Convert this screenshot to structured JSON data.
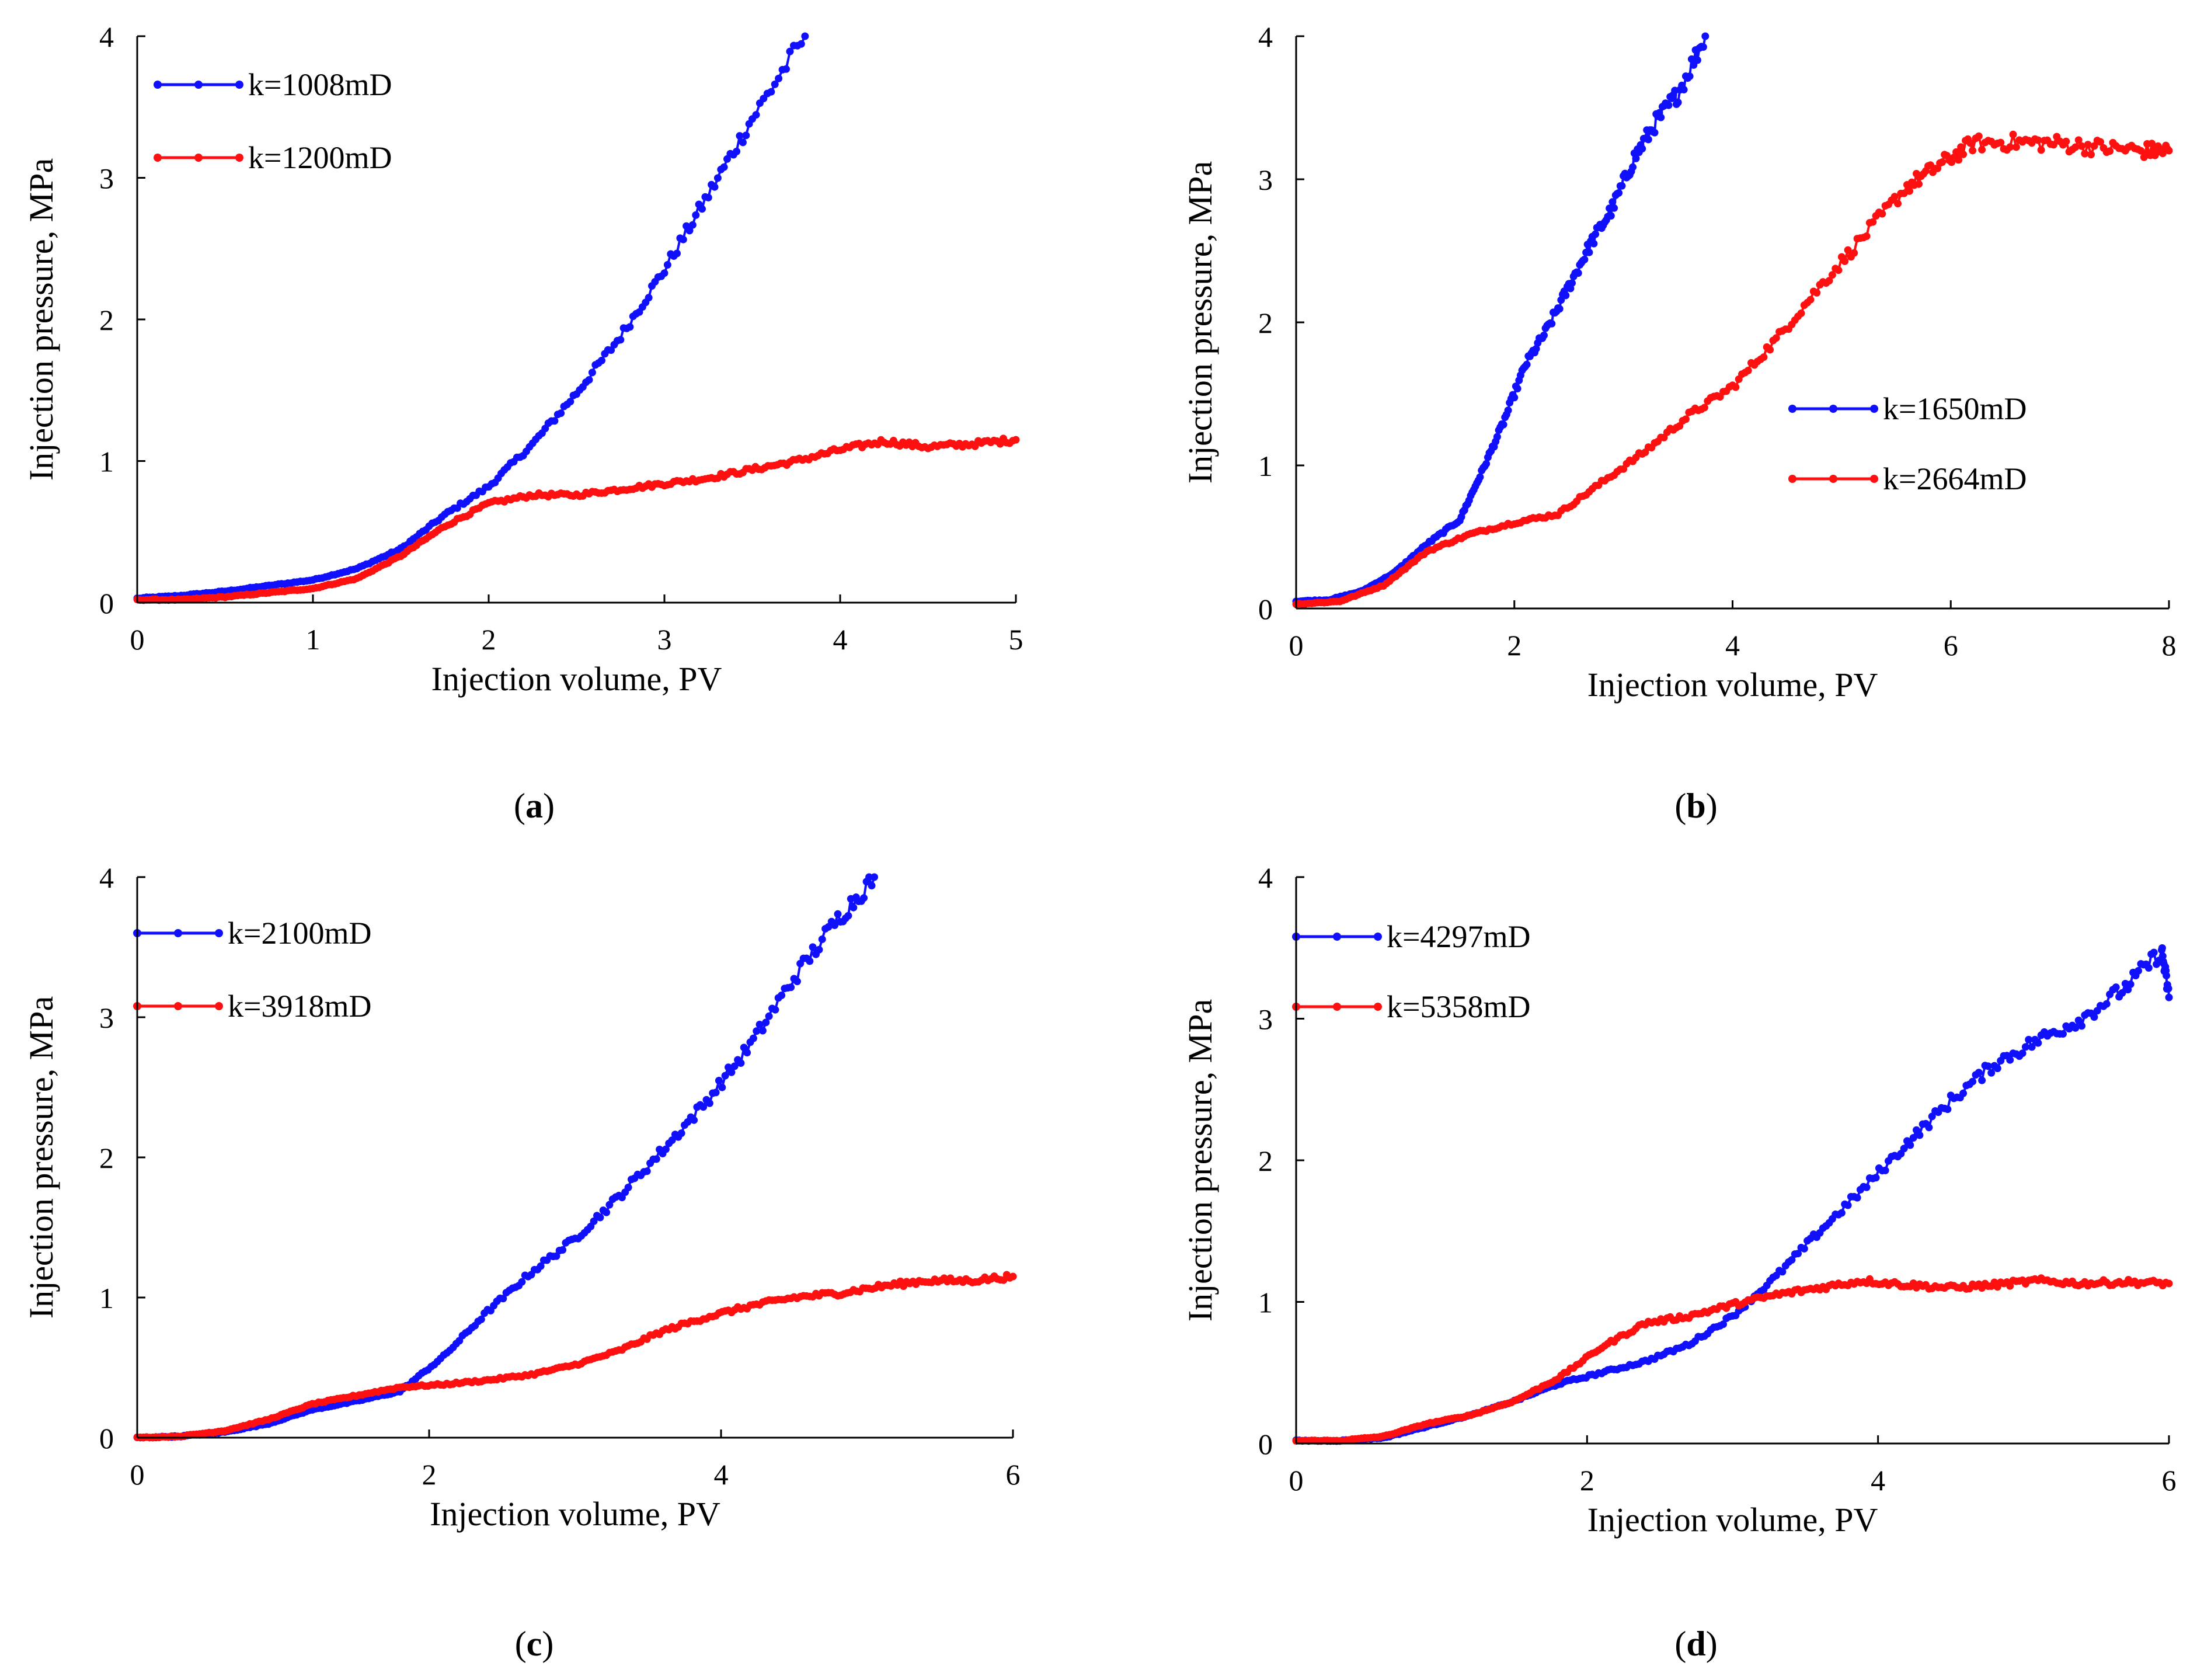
{
  "chart_data": [
    {
      "type": "line",
      "panel": "(a)",
      "caption_letter": "a",
      "xlabel": "Injection volume, PV",
      "ylabel": "Injection pressure, MPa",
      "xlim": [
        0,
        5
      ],
      "ylim": [
        0,
        4
      ],
      "xticks": [
        0,
        1,
        2,
        3,
        4,
        5
      ],
      "yticks": [
        0,
        1,
        2,
        3,
        4
      ],
      "grid": false,
      "legend_position": "top-left",
      "series": [
        {
          "name": "k=1008mD",
          "color": "#1010ff",
          "x": [
            0,
            0.25,
            0.5,
            0.75,
            1.0,
            1.25,
            1.5,
            1.75,
            2.0,
            2.25,
            2.5,
            2.75,
            3.0,
            3.25,
            3.5,
            3.8
          ],
          "y": [
            0.03,
            0.05,
            0.08,
            0.12,
            0.16,
            0.24,
            0.38,
            0.62,
            0.82,
            1.12,
            1.48,
            1.88,
            2.35,
            2.88,
            3.42,
            4.0
          ]
        },
        {
          "name": "k=1200mD",
          "color": "#ff1010",
          "x": [
            0,
            0.25,
            0.5,
            0.75,
            1.0,
            1.25,
            1.5,
            1.75,
            2.0,
            2.25,
            2.5,
            2.75,
            3.0,
            3.25,
            3.5,
            3.75,
            4.0,
            4.25,
            4.5,
            4.75,
            5.0
          ],
          "y": [
            0.02,
            0.02,
            0.04,
            0.07,
            0.1,
            0.17,
            0.33,
            0.54,
            0.7,
            0.76,
            0.76,
            0.8,
            0.84,
            0.88,
            0.94,
            1.0,
            1.08,
            1.14,
            1.1,
            1.12,
            1.15
          ]
        }
      ]
    },
    {
      "type": "line",
      "panel": "(b)",
      "caption_letter": "b",
      "xlabel": "Injection volume, PV",
      "ylabel": "Injection pressure, MPa",
      "xlim": [
        0,
        8
      ],
      "ylim": [
        0,
        4
      ],
      "xticks": [
        0,
        2,
        4,
        6,
        8
      ],
      "yticks": [
        0,
        1,
        2,
        3,
        4
      ],
      "grid": false,
      "legend_position": "middle-right",
      "series": [
        {
          "name": "k=1650mD",
          "color": "#1010ff",
          "x": [
            0,
            0.3,
            0.6,
            0.9,
            1.2,
            1.5,
            1.7,
            1.9,
            2.1,
            2.3,
            2.5,
            2.7,
            2.9,
            3.1,
            3.3,
            3.5,
            3.75
          ],
          "y": [
            0.05,
            0.06,
            0.12,
            0.25,
            0.45,
            0.62,
            0.95,
            1.3,
            1.7,
            1.95,
            2.25,
            2.55,
            2.8,
            3.15,
            3.4,
            3.6,
            4.0
          ]
        },
        {
          "name": "k=2664mD",
          "color": "#ff1010",
          "x": [
            0,
            0.4,
            0.8,
            1.2,
            1.6,
            2.0,
            2.4,
            2.8,
            3.2,
            3.6,
            4.0,
            4.4,
            4.8,
            5.2,
            5.6,
            5.9,
            6.2,
            6.6,
            7.0,
            7.4,
            7.8,
            8.0
          ],
          "y": [
            0.03,
            0.05,
            0.16,
            0.4,
            0.52,
            0.6,
            0.66,
            0.88,
            1.1,
            1.35,
            1.55,
            1.88,
            2.25,
            2.6,
            2.95,
            3.1,
            3.25,
            3.26,
            3.25,
            3.22,
            3.2,
            3.2
          ]
        }
      ]
    },
    {
      "type": "line",
      "panel": "(c)",
      "caption_letter": "c",
      "xlabel": "Injection volume, PV",
      "ylabel": "Injection pressure, MPa",
      "xlim": [
        0,
        6
      ],
      "ylim": [
        0,
        4
      ],
      "xticks": [
        0,
        2,
        4,
        6
      ],
      "yticks": [
        0,
        1,
        2,
        3,
        4
      ],
      "grid": false,
      "legend_position": "top-left",
      "series": [
        {
          "name": "k=2100mD",
          "color": "#1010ff",
          "x": [
            0,
            0.3,
            0.6,
            0.9,
            1.2,
            1.5,
            1.8,
            2.1,
            2.4,
            2.7,
            3.0,
            3.3,
            3.6,
            3.9,
            4.2,
            4.5,
            4.8,
            5.05
          ],
          "y": [
            0,
            0.01,
            0.04,
            0.1,
            0.2,
            0.26,
            0.33,
            0.58,
            0.9,
            1.18,
            1.42,
            1.72,
            2.05,
            2.4,
            2.8,
            3.28,
            3.7,
            4.0
          ]
        },
        {
          "name": "k=3918mD",
          "color": "#ff1010",
          "x": [
            0,
            0.3,
            0.6,
            0.9,
            1.2,
            1.5,
            1.8,
            2.1,
            2.4,
            2.7,
            3.0,
            3.3,
            3.6,
            3.9,
            4.2,
            4.5,
            4.8,
            5.1,
            5.4,
            5.7,
            6.0
          ],
          "y": [
            0,
            0.01,
            0.05,
            0.13,
            0.24,
            0.3,
            0.36,
            0.38,
            0.41,
            0.45,
            0.52,
            0.62,
            0.76,
            0.86,
            0.94,
            1.0,
            1.03,
            1.08,
            1.12,
            1.12,
            1.15
          ]
        }
      ]
    },
    {
      "type": "line",
      "panel": "(d)",
      "caption_letter": "d",
      "xlabel": "Injection volume, PV",
      "ylabel": "Injection pressure, MPa",
      "xlim": [
        0,
        6
      ],
      "ylim": [
        0,
        4
      ],
      "xticks": [
        0,
        2,
        4,
        6
      ],
      "yticks": [
        0,
        1,
        2,
        3,
        4
      ],
      "grid": false,
      "legend_position": "top-left",
      "series": [
        {
          "name": "k=4297mD",
          "color": "#1010ff",
          "x": [
            0,
            0.3,
            0.6,
            0.9,
            1.2,
            1.5,
            1.8,
            2.1,
            2.4,
            2.7,
            3.0,
            3.3,
            3.6,
            3.9,
            4.2,
            4.5,
            4.8,
            5.1,
            5.4,
            5.7,
            5.95,
            6.0
          ],
          "y": [
            0.02,
            0.02,
            0.04,
            0.12,
            0.2,
            0.3,
            0.42,
            0.5,
            0.58,
            0.7,
            0.9,
            1.18,
            1.5,
            1.8,
            2.12,
            2.42,
            2.68,
            2.85,
            3.0,
            3.22,
            3.48,
            3.15
          ]
        },
        {
          "name": "k=5358mD",
          "color": "#ff1010",
          "x": [
            0,
            0.3,
            0.6,
            0.9,
            1.2,
            1.5,
            1.8,
            2.1,
            2.4,
            2.7,
            3.0,
            3.3,
            3.6,
            3.9,
            4.2,
            4.5,
            4.8,
            5.1,
            5.4,
            5.7,
            6.0
          ],
          "y": [
            0.02,
            0.02,
            0.05,
            0.14,
            0.2,
            0.3,
            0.46,
            0.68,
            0.85,
            0.9,
            0.98,
            1.05,
            1.1,
            1.15,
            1.12,
            1.1,
            1.12,
            1.15,
            1.13,
            1.14,
            1.13
          ]
        }
      ]
    }
  ]
}
